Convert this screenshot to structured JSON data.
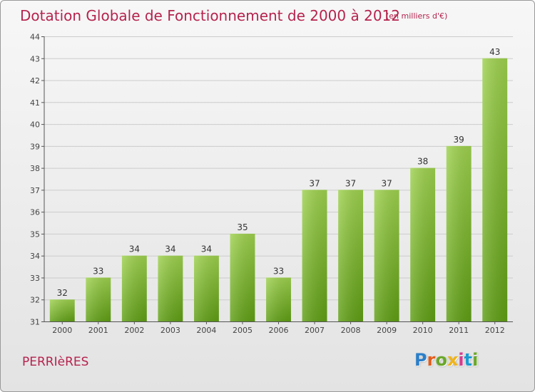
{
  "header": {
    "title": "Dotation Globale de Fonctionnement de 2000 à 2012",
    "subtitle": "(en milliers d'€)"
  },
  "footer": {
    "commune": "PERRIèRES",
    "logo_text": "Proxiti"
  },
  "colors": {
    "title": "#b5234e",
    "bar_top": "#9ed14e",
    "bar_bottom": "#5f9e14",
    "grid": "#cccccc"
  },
  "chart_data": {
    "type": "bar",
    "title": "Dotation Globale de Fonctionnement de 2000 à 2012",
    "subtitle": "(en milliers d'€)",
    "categories": [
      "2000",
      "2001",
      "2002",
      "2003",
      "2004",
      "2005",
      "2006",
      "2007",
      "2008",
      "2009",
      "2010",
      "2011",
      "2012"
    ],
    "values": [
      32,
      33,
      34,
      34,
      34,
      35,
      33,
      37,
      37,
      37,
      38,
      39,
      43
    ],
    "ylim": [
      31,
      44
    ],
    "yticks": [
      31,
      32,
      33,
      34,
      35,
      36,
      37,
      38,
      39,
      40,
      41,
      42,
      43,
      44
    ],
    "xlabel": "",
    "ylabel": "",
    "grid": true,
    "data_labels": true
  }
}
